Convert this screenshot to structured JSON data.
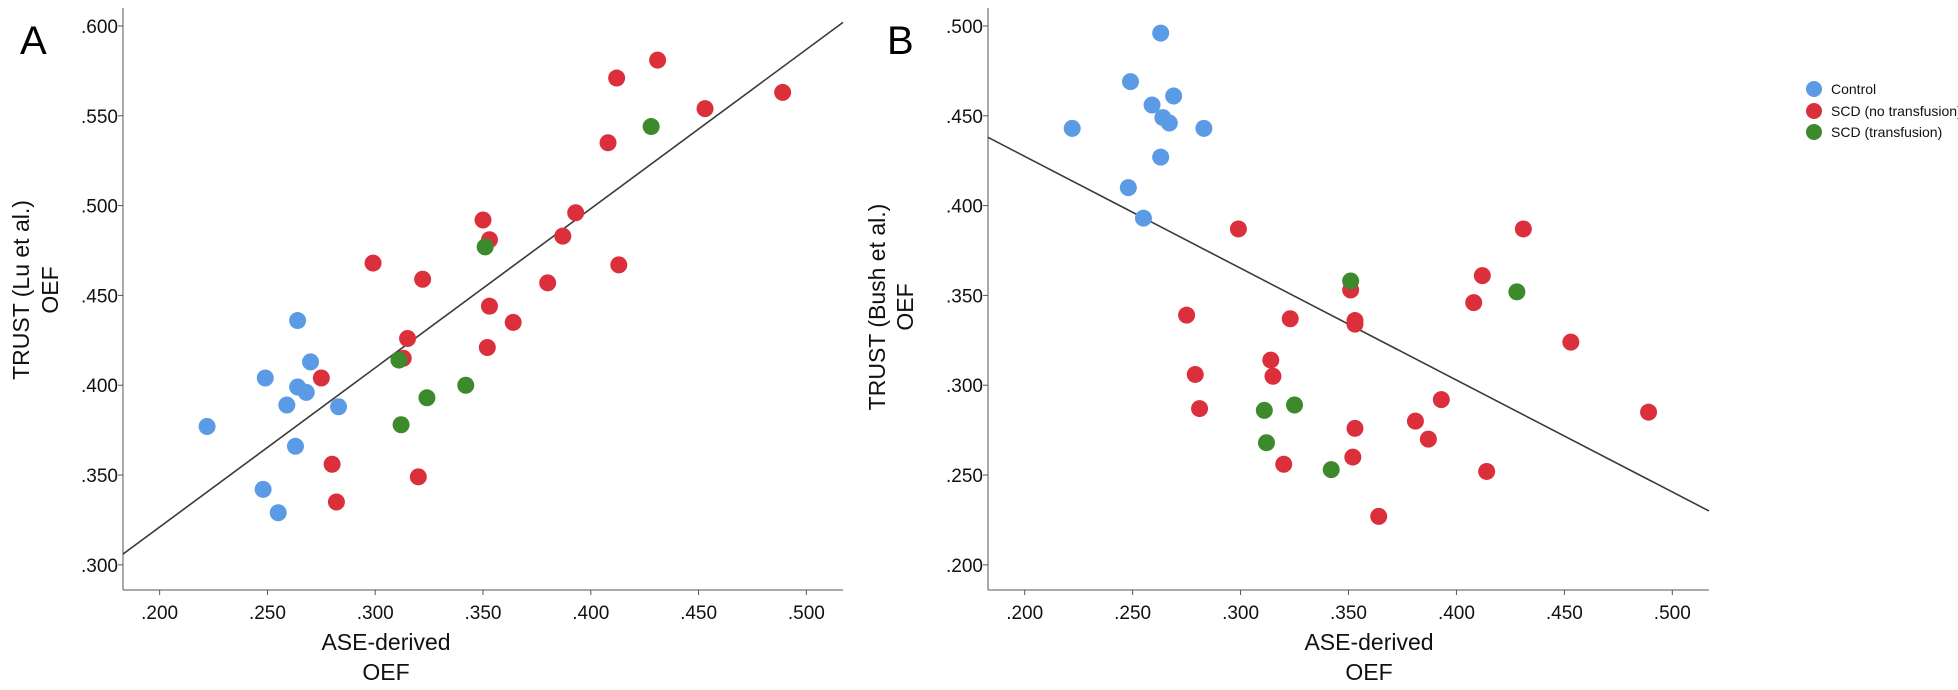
{
  "colors": {
    "control": "#5b9be6",
    "scd_no_transfusion": "#dc2f3c",
    "scd_transfusion": "#3c8a2c"
  },
  "legend": [
    {
      "name": "Control",
      "color_key": "control"
    },
    {
      "name": "SCD (no transfusion)",
      "color_key": "scd_no_transfusion"
    },
    {
      "name": "SCD (transfusion)",
      "color_key": "scd_transfusion"
    }
  ],
  "chart_data": [
    {
      "type": "scatter",
      "panel_label": "A",
      "xlabel_lines": [
        "ASE-derived",
        "OEF"
      ],
      "ylabel_lines": [
        "TRUST (Lu et al.)",
        "OEF"
      ],
      "xlim": [
        0.183,
        0.517
      ],
      "ylim": [
        0.286,
        0.61
      ],
      "xticks": [
        0.2,
        0.25,
        0.3,
        0.35,
        0.4,
        0.45,
        0.5
      ],
      "xtick_labels": [
        ".200",
        ".250",
        ".300",
        ".350",
        ".400",
        ".450",
        ".500"
      ],
      "yticks": [
        0.3,
        0.35,
        0.4,
        0.45,
        0.5,
        0.55,
        0.6
      ],
      "ytick_labels": [
        ".300",
        ".350",
        ".400",
        ".450",
        ".500",
        ".550",
        ".600"
      ],
      "fit_line": {
        "x": [
          0.183,
          0.517
        ],
        "y": [
          0.306,
          0.602
        ]
      },
      "series": [
        {
          "name": "Control",
          "color_key": "control",
          "points": [
            [
              0.222,
              0.377
            ],
            [
              0.249,
              0.404
            ],
            [
              0.259,
              0.389
            ],
            [
              0.264,
              0.399
            ],
            [
              0.268,
              0.396
            ],
            [
              0.27,
              0.413
            ],
            [
              0.264,
              0.436
            ],
            [
              0.283,
              0.388
            ],
            [
              0.263,
              0.366
            ],
            [
              0.248,
              0.342
            ],
            [
              0.255,
              0.329
            ]
          ]
        },
        {
          "name": "SCD (no transfusion)",
          "color_key": "scd_no_transfusion",
          "points": [
            [
              0.275,
              0.404
            ],
            [
              0.28,
              0.356
            ],
            [
              0.282,
              0.335
            ],
            [
              0.299,
              0.468
            ],
            [
              0.313,
              0.415
            ],
            [
              0.315,
              0.426
            ],
            [
              0.32,
              0.349
            ],
            [
              0.322,
              0.459
            ],
            [
              0.35,
              0.492
            ],
            [
              0.353,
              0.444
            ],
            [
              0.353,
              0.481
            ],
            [
              0.352,
              0.421
            ],
            [
              0.364,
              0.435
            ],
            [
              0.38,
              0.457
            ],
            [
              0.387,
              0.483
            ],
            [
              0.393,
              0.496
            ],
            [
              0.408,
              0.535
            ],
            [
              0.412,
              0.571
            ],
            [
              0.413,
              0.467
            ],
            [
              0.431,
              0.581
            ],
            [
              0.453,
              0.554
            ],
            [
              0.489,
              0.563
            ]
          ]
        },
        {
          "name": "SCD (transfusion)",
          "color_key": "scd_transfusion",
          "points": [
            [
              0.311,
              0.414
            ],
            [
              0.312,
              0.378
            ],
            [
              0.324,
              0.393
            ],
            [
              0.342,
              0.4
            ],
            [
              0.351,
              0.477
            ],
            [
              0.428,
              0.544
            ]
          ]
        }
      ]
    },
    {
      "type": "scatter",
      "panel_label": "B",
      "xlabel_lines": [
        "ASE-derived",
        "OEF"
      ],
      "ylabel_lines": [
        "TRUST (Bush et al.)",
        "OEF"
      ],
      "xlim": [
        0.183,
        0.517
      ],
      "ylim": [
        0.186,
        0.51
      ],
      "xticks": [
        0.2,
        0.25,
        0.3,
        0.35,
        0.4,
        0.45,
        0.5
      ],
      "xtick_labels": [
        ".200",
        ".250",
        ".300",
        ".350",
        ".400",
        ".450",
        ".500"
      ],
      "yticks": [
        0.2,
        0.25,
        0.3,
        0.35,
        0.4,
        0.45,
        0.5
      ],
      "ytick_labels": [
        ".200",
        ".250",
        ".300",
        ".350",
        ".400",
        ".450",
        ".500"
      ],
      "fit_line": {
        "x": [
          0.183,
          0.517
        ],
        "y": [
          0.438,
          0.23
        ]
      },
      "series": [
        {
          "name": "Control",
          "color_key": "control",
          "points": [
            [
              0.222,
              0.443
            ],
            [
              0.249,
              0.469
            ],
            [
              0.248,
              0.41
            ],
            [
              0.255,
              0.393
            ],
            [
              0.259,
              0.456
            ],
            [
              0.263,
              0.496
            ],
            [
              0.264,
              0.449
            ],
            [
              0.267,
              0.446
            ],
            [
              0.269,
              0.461
            ],
            [
              0.263,
              0.427
            ],
            [
              0.283,
              0.443
            ]
          ]
        },
        {
          "name": "SCD (no transfusion)",
          "color_key": "scd_no_transfusion",
          "points": [
            [
              0.275,
              0.339
            ],
            [
              0.279,
              0.306
            ],
            [
              0.281,
              0.287
            ],
            [
              0.299,
              0.387
            ],
            [
              0.314,
              0.314
            ],
            [
              0.315,
              0.305
            ],
            [
              0.32,
              0.256
            ],
            [
              0.323,
              0.337
            ],
            [
              0.351,
              0.353
            ],
            [
              0.353,
              0.336
            ],
            [
              0.353,
              0.334
            ],
            [
              0.352,
              0.26
            ],
            [
              0.353,
              0.276
            ],
            [
              0.364,
              0.227
            ],
            [
              0.381,
              0.28
            ],
            [
              0.387,
              0.27
            ],
            [
              0.393,
              0.292
            ],
            [
              0.408,
              0.346
            ],
            [
              0.412,
              0.361
            ],
            [
              0.414,
              0.252
            ],
            [
              0.431,
              0.387
            ],
            [
              0.453,
              0.324
            ],
            [
              0.489,
              0.285
            ]
          ]
        },
        {
          "name": "SCD (transfusion)",
          "color_key": "scd_transfusion",
          "points": [
            [
              0.311,
              0.286
            ],
            [
              0.312,
              0.268
            ],
            [
              0.325,
              0.289
            ],
            [
              0.342,
              0.253
            ],
            [
              0.351,
              0.358
            ],
            [
              0.428,
              0.352
            ]
          ]
        }
      ]
    }
  ]
}
